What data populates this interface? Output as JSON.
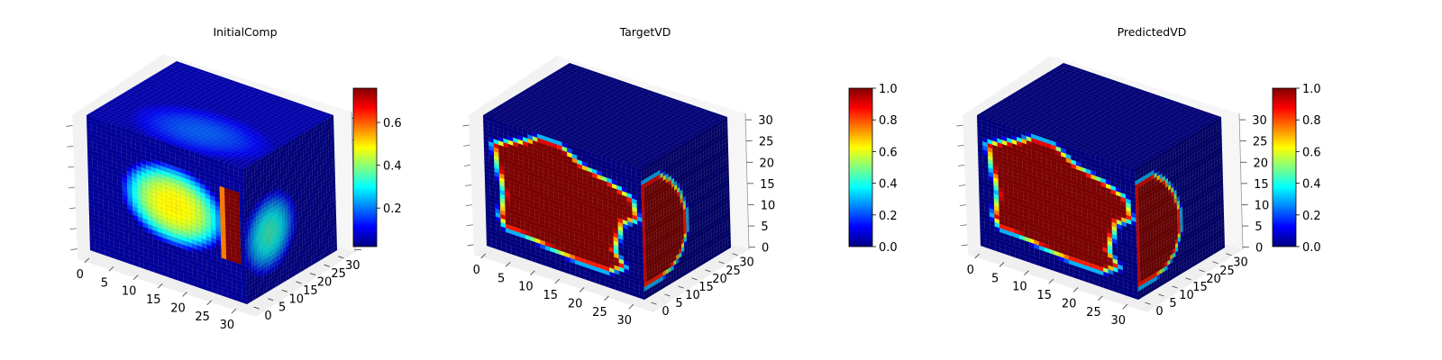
{
  "figure": {
    "panels": [
      {
        "title": "InitialComp"
      },
      {
        "title": "TargetVD"
      },
      {
        "title": "PredictedVD"
      }
    ]
  },
  "colormap": {
    "name": "jet",
    "stops": [
      "#00007f",
      "#0000ff",
      "#0080ff",
      "#00ffff",
      "#80ff80",
      "#ffff00",
      "#ff8000",
      "#ff0000",
      "#7f0000"
    ]
  },
  "chart_data": [
    {
      "type": "heatmap",
      "title": "InitialComp",
      "plot": "3d voxel cube",
      "x_ticks": [
        "0",
        "5",
        "10",
        "15",
        "20",
        "25",
        "30"
      ],
      "y_ticks": [
        "0",
        "5",
        "10",
        "15",
        "20",
        "25",
        "30"
      ],
      "z_ticks": [],
      "xlim": [
        0,
        32
      ],
      "ylim": [
        0,
        32
      ],
      "zlim": [
        0,
        32
      ],
      "colorbar": {
        "range": [
          0.02,
          0.76
        ],
        "ticks": [
          "0.2",
          "0.4",
          "0.6"
        ]
      },
      "front_face": {
        "center": [
          17,
          14
        ],
        "radius": [
          11,
          10
        ],
        "peak": 0.45,
        "edge_value": 0.76,
        "edge_band_x": [
          27,
          30
        ],
        "edge_band_y": [
          6,
          22
        ]
      },
      "side_face": {
        "center": [
          8,
          18
        ],
        "radius": [
          10,
          10
        ],
        "peak": 0.3
      },
      "grid": true
    },
    {
      "type": "heatmap",
      "title": "TargetVD",
      "plot": "3d voxel cube",
      "x_ticks": [
        "0",
        "5",
        "10",
        "15",
        "20",
        "25",
        "30"
      ],
      "y_ticks": [
        "0",
        "5",
        "10",
        "15",
        "20",
        "25",
        "30"
      ],
      "z_ticks": [
        "0",
        "5",
        "10",
        "15",
        "20",
        "25",
        "30"
      ],
      "xlim": [
        0,
        32
      ],
      "ylim": [
        0,
        32
      ],
      "zlim": [
        0,
        32
      ],
      "colorbar": {
        "range": [
          0.0,
          1.0
        ],
        "ticks": [
          "0.0",
          "0.2",
          "0.4",
          "0.6",
          "0.8",
          "1.0"
        ]
      },
      "front_face": {
        "shape": "blob",
        "value": 1.0,
        "background": 0.0
      },
      "side_face": {
        "shape": "blob",
        "value": 1.0,
        "background": 0.0
      },
      "grid": true
    },
    {
      "type": "heatmap",
      "title": "PredictedVD",
      "plot": "3d voxel cube",
      "x_ticks": [
        "0",
        "5",
        "10",
        "15",
        "20",
        "25",
        "30"
      ],
      "y_ticks": [
        "0",
        "5",
        "10",
        "15",
        "20",
        "25",
        "30"
      ],
      "z_ticks": [
        "0",
        "5",
        "10",
        "15",
        "20",
        "25",
        "30"
      ],
      "xlim": [
        0,
        32
      ],
      "ylim": [
        0,
        32
      ],
      "zlim": [
        0,
        32
      ],
      "colorbar": {
        "range": [
          0.0,
          1.0
        ],
        "ticks": [
          "0.0",
          "0.2",
          "0.4",
          "0.6",
          "0.8",
          "1.0"
        ]
      },
      "front_face": {
        "shape": "blob",
        "value": 1.0,
        "background": 0.0
      },
      "side_face": {
        "shape": "blob",
        "value": 1.0,
        "background": 0.0
      },
      "grid": true
    }
  ]
}
